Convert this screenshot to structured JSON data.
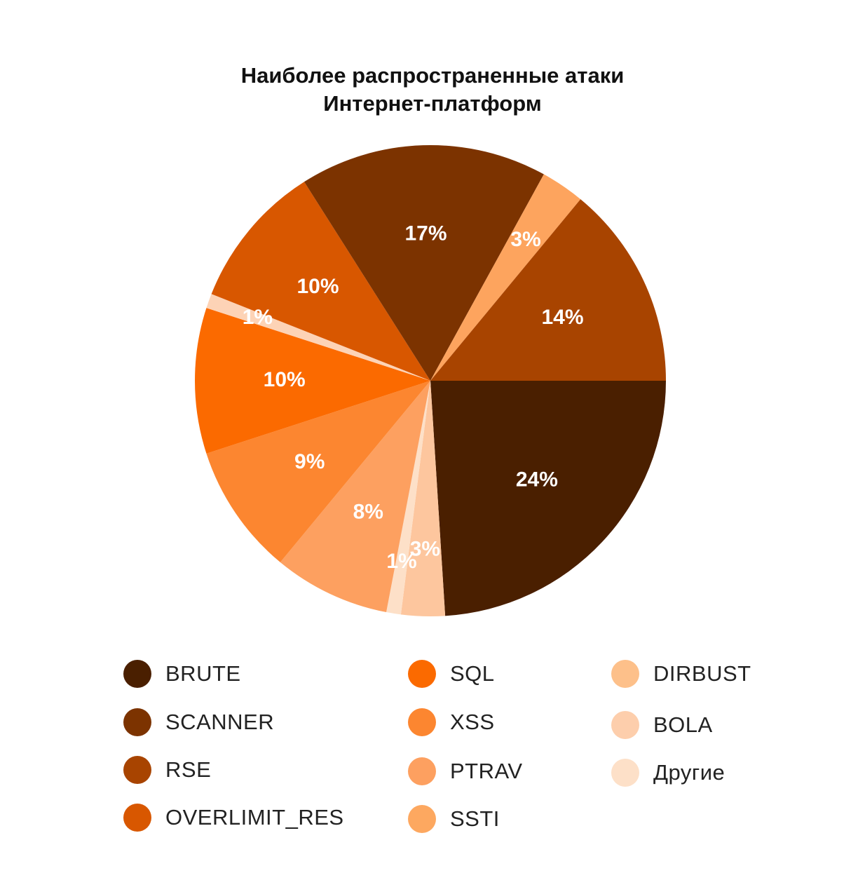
{
  "chart_data": {
    "type": "pie",
    "title_lines": [
      "Наиболее распространенные атаки",
      "Интернет-платформ"
    ],
    "slices": [
      {
        "name": "BRUTE",
        "value": 24,
        "label": "24%",
        "color": "#4a1f00"
      },
      {
        "name": "SSTI",
        "value": 3,
        "label": "3%",
        "color": "#fdc69e"
      },
      {
        "name": "Другие",
        "value": 1,
        "label": "1%",
        "color": "#fde0c8"
      },
      {
        "name": "PTRAV",
        "value": 8,
        "label": "8%",
        "color": "#fda060"
      },
      {
        "name": "XSS",
        "value": 9,
        "label": "9%",
        "color": "#fc8630"
      },
      {
        "name": "SQL",
        "value": 10,
        "label": "10%",
        "color": "#fb6a00"
      },
      {
        "name": "BOLA",
        "value": 1,
        "label": "1%",
        "color": "#fdd3b6"
      },
      {
        "name": "OVERLIMIT_RES",
        "value": 10,
        "label": "10%",
        "color": "#d85700"
      },
      {
        "name": "SCANNER",
        "value": 17,
        "label": "17%",
        "color": "#7c3300"
      },
      {
        "name": "DIRBUST",
        "value": 3,
        "label": "3%",
        "color": "#fda45e"
      },
      {
        "name": "RSE",
        "value": 14,
        "label": "14%",
        "color": "#a84400"
      }
    ],
    "legend": [
      {
        "name": "BRUTE",
        "color": "#4a1f00"
      },
      {
        "name": "SCANNER",
        "color": "#7c3300"
      },
      {
        "name": "RSE",
        "color": "#a84400"
      },
      {
        "name": "OVERLIMIT_RES",
        "color": "#d85700"
      },
      {
        "name": "SQL",
        "color": "#fb6a00"
      },
      {
        "name": "XSS",
        "color": "#fc8630"
      },
      {
        "name": "PTRAV",
        "color": "#fda060"
      },
      {
        "name": "SSTI",
        "color": "#fda860"
      },
      {
        "name": "DIRBUST",
        "color": "#fdc08a"
      },
      {
        "name": "BOLA",
        "color": "#fdceac"
      },
      {
        "name": "Другие",
        "color": "#fde0c8"
      }
    ],
    "legend_placement": "bottom, three columns"
  }
}
